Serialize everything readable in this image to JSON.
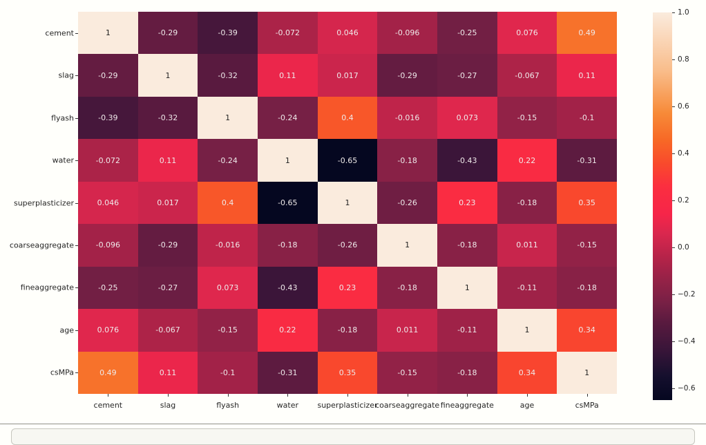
{
  "chart_data": {
    "type": "heatmap",
    "title": "",
    "xlabel": "",
    "ylabel": "",
    "categories": [
      "cement",
      "slag",
      "flyash",
      "water",
      "superplasticizer",
      "coarseaggregate",
      "fineaggregate",
      "age",
      "csMPa"
    ],
    "matrix": [
      [
        1,
        -0.29,
        -0.39,
        -0.072,
        0.046,
        -0.096,
        -0.25,
        0.076,
        0.49
      ],
      [
        -0.29,
        1,
        -0.32,
        0.11,
        0.017,
        -0.29,
        -0.27,
        -0.067,
        0.11
      ],
      [
        -0.39,
        -0.32,
        1,
        -0.24,
        0.4,
        -0.016,
        0.073,
        -0.15,
        -0.1
      ],
      [
        -0.072,
        0.11,
        -0.24,
        1,
        -0.65,
        -0.18,
        -0.43,
        0.22,
        -0.31
      ],
      [
        0.046,
        0.017,
        0.4,
        -0.65,
        1,
        -0.26,
        0.23,
        -0.18,
        0.35
      ],
      [
        -0.096,
        -0.29,
        -0.016,
        -0.18,
        -0.26,
        1,
        -0.18,
        0.011,
        -0.15
      ],
      [
        -0.25,
        -0.27,
        0.073,
        -0.43,
        0.23,
        -0.18,
        1,
        -0.11,
        -0.18
      ],
      [
        0.076,
        -0.067,
        -0.15,
        0.22,
        -0.18,
        0.011,
        -0.11,
        1,
        0.34
      ],
      [
        0.49,
        0.11,
        -0.1,
        -0.31,
        0.35,
        -0.15,
        -0.18,
        0.34,
        1
      ]
    ],
    "vmin": -0.65,
    "vmax": 1.0,
    "colormap": "rocket",
    "colormap_stops": [
      [
        0.0,
        "#050720"
      ],
      [
        0.06,
        "#140f2d"
      ],
      [
        0.13,
        "#391539"
      ],
      [
        0.2,
        "#591a3f"
      ],
      [
        0.25,
        "#772045"
      ],
      [
        0.31,
        "#952247"
      ],
      [
        0.37,
        "#b62349"
      ],
      [
        0.43,
        "#da274e"
      ],
      [
        0.48,
        "#f62549"
      ],
      [
        0.55,
        "#fb2e40"
      ],
      [
        0.61,
        "#f94a2c"
      ],
      [
        0.67,
        "#f76826"
      ],
      [
        0.74,
        "#f78a38"
      ],
      [
        0.85,
        "#f9bd8b"
      ],
      [
        1.0,
        "#faebdd"
      ]
    ],
    "annotation_color_light": "#efeaea",
    "annotation_color_dark": "#1f1f1f",
    "legend_position": "right colorbar",
    "grid": false,
    "colorbar": {
      "tick_labels": [
        "1.0",
        "0.8",
        "0.6",
        "0.4",
        "0.2",
        "0.0",
        "−0.2",
        "−0.4",
        "−0.6"
      ],
      "tick_values": [
        1.0,
        0.8,
        0.6,
        0.4,
        0.2,
        0.0,
        -0.2,
        -0.4,
        -0.6
      ]
    }
  },
  "page": {
    "axis_text_color": "#262626",
    "divider_color": "#90908a",
    "notebook_cell_background": "#f7f7f2",
    "notebook_cell_border": "#c6c6be"
  }
}
